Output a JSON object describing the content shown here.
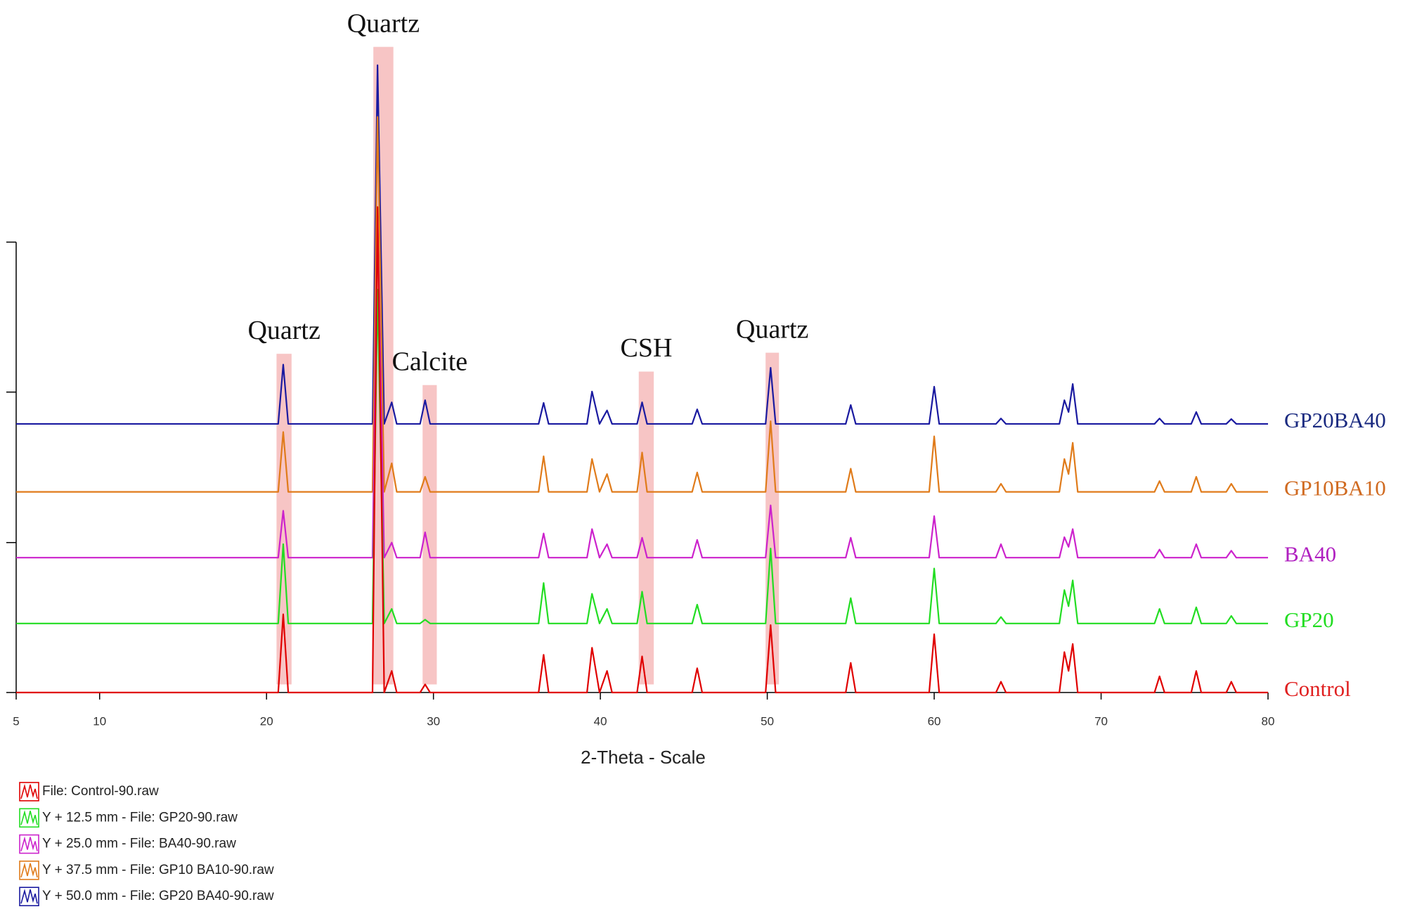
{
  "chart_data": {
    "type": "line",
    "x_label": "2-Theta - Scale",
    "xlim": [
      5,
      80
    ],
    "xticks": [
      5,
      10,
      20,
      30,
      40,
      50,
      60,
      70,
      80
    ],
    "ylim": [
      0,
      128
    ],
    "yticks": [
      0,
      27.8,
      55.7,
      83.5
    ],
    "x": [
      5,
      20.7,
      21.0,
      21.3,
      26.35,
      26.65,
      27.05,
      27.5,
      27.8,
      29.2,
      29.5,
      29.8,
      36.3,
      36.6,
      36.9,
      39.2,
      39.5,
      39.95,
      40.4,
      40.7,
      42.2,
      42.5,
      42.8,
      45.5,
      45.8,
      46.1,
      49.9,
      50.2,
      50.5,
      54.7,
      55.0,
      55.3,
      59.7,
      60.0,
      60.3,
      63.7,
      64.0,
      64.3,
      67.5,
      67.8,
      68.05,
      68.3,
      68.6,
      73.2,
      73.5,
      73.8,
      75.4,
      75.7,
      76.0,
      77.5,
      77.8,
      78.1,
      80
    ],
    "series": [
      {
        "name": "File: Control-90.raw",
        "label": "Control",
        "color": "#e00000",
        "label_color": "#e02020",
        "values": [
          0,
          0,
          14.5,
          0,
          0,
          90,
          0,
          4,
          0,
          0,
          1.5,
          0,
          0,
          7,
          0,
          0,
          8.3,
          0,
          4,
          0,
          0,
          6.7,
          0,
          0,
          4.5,
          0,
          0,
          12.5,
          0,
          0,
          5.5,
          0,
          0,
          10.8,
          0,
          0,
          2,
          0,
          0,
          7.5,
          4,
          9,
          0,
          0,
          3,
          0,
          0,
          4,
          0,
          0,
          2,
          0,
          0
        ]
      },
      {
        "name": "Y + 12.5 mm - File: GP20-90.raw",
        "label": "GP20",
        "color": "#22dd22",
        "label_color": "#22dd22",
        "values": [
          12.8,
          12.8,
          27.5,
          12.8,
          12.8,
          74.7,
          12.8,
          15.5,
          12.8,
          12.8,
          13.5,
          12.8,
          12.8,
          20.3,
          12.8,
          12.8,
          18.3,
          12.8,
          15.5,
          12.8,
          12.8,
          18.7,
          12.8,
          12.8,
          16.3,
          12.8,
          12.8,
          26.7,
          12.8,
          12.8,
          17.5,
          12.8,
          12.8,
          23,
          12.8,
          12.8,
          14,
          12.8,
          12.8,
          19,
          16,
          20.8,
          12.8,
          12.8,
          15.5,
          12.8,
          12.8,
          15.8,
          12.8,
          12.8,
          14.2,
          12.8,
          12.8
        ]
      },
      {
        "name": "Y + 25.0 mm - File: BA40-90.raw",
        "label": "BA40",
        "color": "#cc22cc",
        "label_color": "#b020c0",
        "values": [
          25,
          25,
          33.7,
          25,
          25,
          88.3,
          25,
          27.8,
          25,
          25,
          29.7,
          25,
          25,
          29.5,
          25,
          25,
          30.3,
          25,
          27.5,
          25,
          25,
          28.7,
          25,
          25,
          28.3,
          25,
          25,
          34.7,
          25,
          25,
          28.7,
          25,
          25,
          32.7,
          25,
          25,
          27.5,
          25,
          25,
          28.8,
          27,
          30.3,
          25,
          25,
          26.5,
          25,
          25,
          27.5,
          25,
          25,
          26.3,
          25,
          25
        ]
      },
      {
        "name": "Y + 37.5 mm - File: GP10 BA10-90.raw",
        "label": "GP10BA10",
        "color": "#e07b1a",
        "label_color": "#d06a20",
        "values": [
          37.2,
          37.2,
          48.3,
          37.2,
          37.2,
          106.7,
          37.2,
          42.5,
          37.2,
          37.2,
          40,
          37.2,
          37.2,
          43.8,
          37.2,
          37.2,
          43.3,
          37.2,
          40.5,
          37.2,
          37.2,
          44.5,
          37.2,
          37.2,
          40.8,
          37.2,
          37.2,
          50.3,
          37.2,
          37.2,
          41.5,
          37.2,
          37.2,
          47.5,
          37.2,
          37.2,
          38.7,
          37.2,
          37.2,
          43.3,
          40.5,
          46.3,
          37.2,
          37.2,
          39.2,
          37.2,
          37.2,
          40,
          37.2,
          37.2,
          38.7,
          37.2,
          37.2
        ]
      },
      {
        "name": "Y + 50.0 mm - File: GP20 BA40-90.raw",
        "label": "GP20BA40",
        "color": "#1a1aa0",
        "label_color": "#1a2a80",
        "values": [
          49.8,
          49.8,
          60.8,
          49.8,
          49.8,
          116.3,
          49.8,
          53.8,
          49.8,
          49.8,
          54.2,
          49.8,
          49.8,
          53.7,
          49.8,
          49.8,
          55.8,
          49.8,
          52.3,
          49.8,
          49.8,
          53.8,
          49.8,
          49.8,
          52.5,
          49.8,
          49.8,
          60.2,
          49.8,
          49.8,
          53.3,
          49.8,
          49.8,
          56.7,
          49.8,
          49.8,
          50.8,
          49.8,
          49.8,
          54.2,
          52,
          57.2,
          49.8,
          49.8,
          50.8,
          49.8,
          49.8,
          52,
          49.8,
          49.8,
          50.7,
          49.8,
          49.8
        ]
      }
    ],
    "annotations": [
      {
        "text": "Quartz",
        "band": [
          20.6,
          21.5
        ],
        "yrange": [
          1.5,
          62.8
        ]
      },
      {
        "text": "Quartz",
        "band": [
          26.4,
          27.6
        ],
        "yrange": [
          1.5,
          119.7
        ]
      },
      {
        "text": "Calcite",
        "band": [
          29.35,
          30.2
        ],
        "yrange": [
          1.5,
          57
        ]
      },
      {
        "text": "CSH",
        "band": [
          42.3,
          43.2
        ],
        "yrange": [
          1.5,
          59.5
        ]
      },
      {
        "text": "Quartz",
        "band": [
          49.9,
          50.7
        ],
        "yrange": [
          1.5,
          63
        ]
      }
    ]
  }
}
